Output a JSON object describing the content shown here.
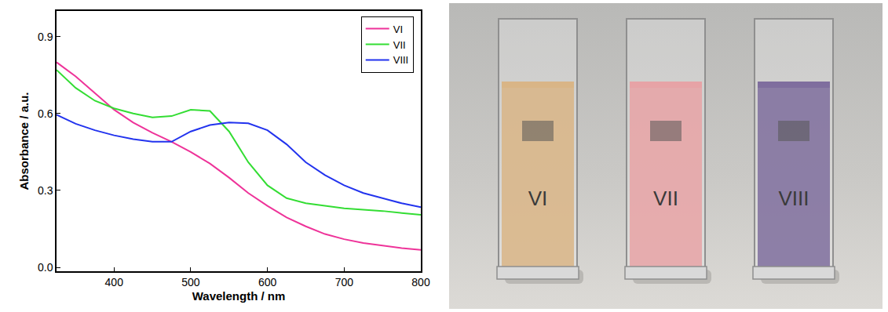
{
  "chart_data": {
    "type": "line",
    "x_label": "Wavelength / nm",
    "y_label": "Absorbance / a.u.",
    "x": [
      325,
      350,
      375,
      400,
      425,
      450,
      475,
      500,
      525,
      550,
      575,
      600,
      625,
      650,
      675,
      700,
      725,
      750,
      775,
      800
    ],
    "series": [
      {
        "name": "VI",
        "color": "#ee3399",
        "values": [
          0.8,
          0.745,
          0.68,
          0.615,
          0.565,
          0.525,
          0.49,
          0.45,
          0.405,
          0.35,
          0.29,
          0.24,
          0.195,
          0.16,
          0.13,
          0.11,
          0.095,
          0.085,
          0.075,
          0.068
        ]
      },
      {
        "name": "VII",
        "color": "#33dd33",
        "values": [
          0.77,
          0.7,
          0.65,
          0.62,
          0.6,
          0.585,
          0.59,
          0.615,
          0.61,
          0.53,
          0.41,
          0.32,
          0.27,
          0.25,
          0.24,
          0.23,
          0.225,
          0.22,
          0.212,
          0.205
        ]
      },
      {
        "name": "VIII",
        "color": "#2233ee",
        "values": [
          0.595,
          0.56,
          0.535,
          0.515,
          0.5,
          0.49,
          0.49,
          0.53,
          0.555,
          0.565,
          0.562,
          0.535,
          0.48,
          0.41,
          0.36,
          0.32,
          0.29,
          0.27,
          0.25,
          0.235
        ]
      }
    ],
    "xlim": [
      325,
      800
    ],
    "xticks": [
      400,
      500,
      600,
      700,
      800
    ],
    "ylim": [
      -0.015,
      1.0
    ],
    "yticks": [
      {
        "value": 0,
        "label": "0.0"
      },
      0.3,
      0.6,
      0.9
    ],
    "grid": false,
    "legend": "upper right"
  },
  "photo": {
    "samples": [
      {
        "label": "VI",
        "color": "#d9b586"
      },
      {
        "label": "VII",
        "color": "#e7a3a6"
      },
      {
        "label": "VIII",
        "color": "#7f6e9e"
      }
    ]
  }
}
